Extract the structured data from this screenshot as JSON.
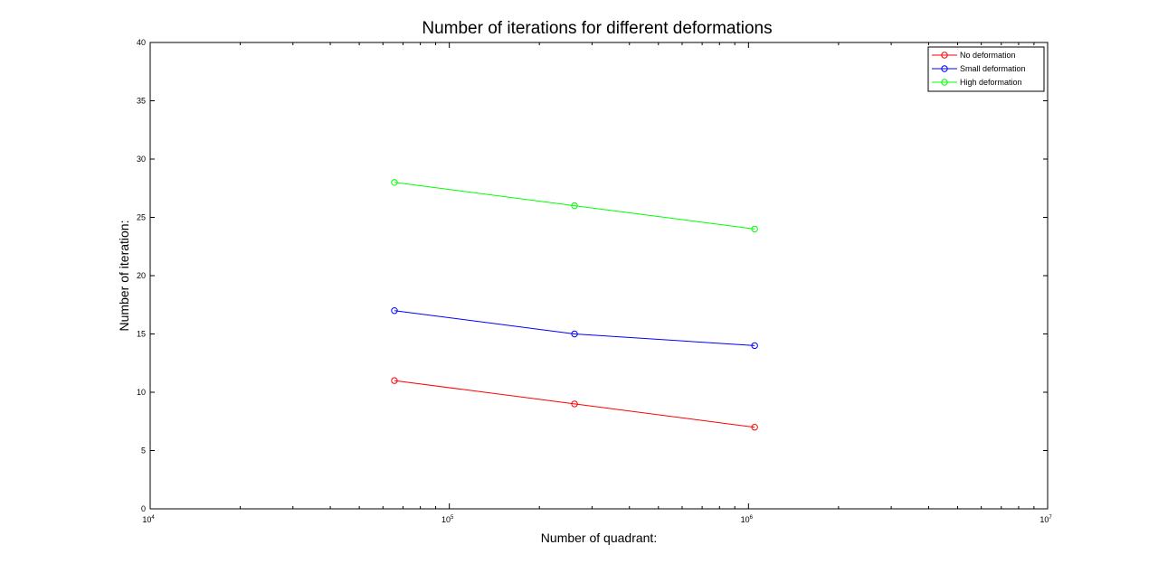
{
  "chart_data": {
    "type": "line",
    "title": "Number of iterations for different deformations",
    "xlabel": "Number of quadrant:",
    "ylabel": "Number of iteration:",
    "xscale": "log",
    "xlim": [
      10000,
      10000000
    ],
    "ylim": [
      0,
      40
    ],
    "x_ticks": [
      {
        "base": "10",
        "exp": "4",
        "value": 10000
      },
      {
        "base": "10",
        "exp": "5",
        "value": 100000
      },
      {
        "base": "10",
        "exp": "6",
        "value": 1000000
      },
      {
        "base": "10",
        "exp": "7",
        "value": 10000000
      }
    ],
    "y_ticks": [
      {
        "label": "0",
        "value": 0
      },
      {
        "label": "5",
        "value": 5
      },
      {
        "label": "10",
        "value": 10
      },
      {
        "label": "15",
        "value": 15
      },
      {
        "label": "20",
        "value": 20
      },
      {
        "label": "25",
        "value": 25
      },
      {
        "label": "30",
        "value": 30
      },
      {
        "label": "35",
        "value": 35
      },
      {
        "label": "40",
        "value": 40
      }
    ],
    "grid": false,
    "legend_position": "top-right",
    "x": [
      65536,
      262144,
      1048576
    ],
    "series": [
      {
        "name": "No deformation",
        "color": "#ff0000",
        "marker": "circle",
        "values": [
          11,
          9,
          7
        ]
      },
      {
        "name": "Small deformation",
        "color": "#0000ff",
        "marker": "circle",
        "values": [
          17,
          15,
          14
        ]
      },
      {
        "name": "High deformation",
        "color": "#00ff00",
        "marker": "circle",
        "values": [
          28,
          26,
          24
        ]
      }
    ]
  }
}
